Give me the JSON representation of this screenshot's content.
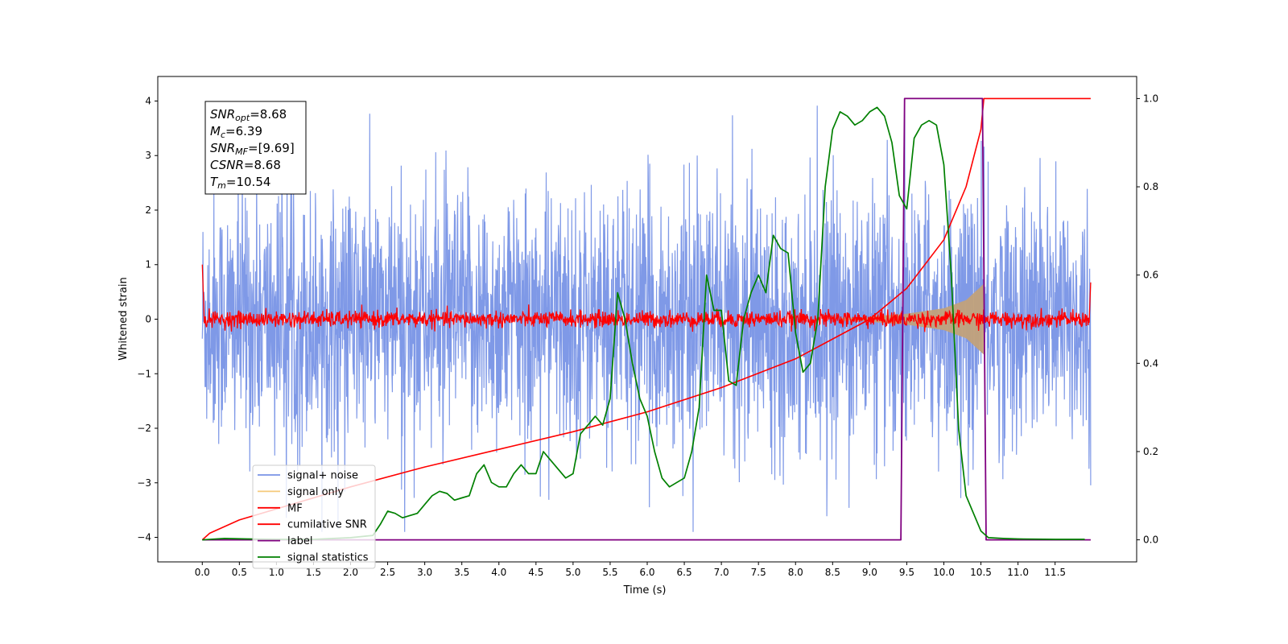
{
  "chart_data": {
    "type": "line",
    "xlabel": "Time (s)",
    "ylabel": "Whitened strain",
    "x_ticks": [
      "0.0",
      "0.5",
      "1.0",
      "1.5",
      "2.0",
      "2.5",
      "3.0",
      "3.5",
      "4.0",
      "4.5",
      "5.0",
      "5.5",
      "6.0",
      "6.5",
      "7.0",
      "7.5",
      "8.0",
      "8.5",
      "9.0",
      "9.5",
      "10.0",
      "10.5",
      "11.0",
      "11.5"
    ],
    "xlim": [
      -0.6,
      12.6
    ],
    "ylim_left": [
      -4.45,
      4.45
    ],
    "ylim_right": [
      -0.05,
      1.05
    ],
    "y_ticks_left": [
      "−4",
      "−3",
      "−2",
      "−1",
      "0",
      "1",
      "2",
      "3",
      "4"
    ],
    "y_ticks_right": [
      "0.0",
      "0.2",
      "0.4",
      "0.6",
      "0.8",
      "1.0"
    ],
    "legend_location": "lower-left",
    "annotation": [
      {
        "sym": "SNR",
        "sub": "opt",
        "value": "=8.68"
      },
      {
        "sym": "M",
        "sub": "c",
        "value": "=6.39"
      },
      {
        "sym": "SNR",
        "sub": "MF",
        "value": "=[9.69]"
      },
      {
        "sym": "CSNR",
        "sub": "",
        "value": "=8.68"
      },
      {
        "sym": "T",
        "sub": "m",
        "value": "=10.54"
      }
    ],
    "series": [
      {
        "name": "signal+ noise",
        "axis": "left",
        "color": "#7893e6",
        "x_range": [
          0,
          11.98
        ],
        "amplitude_envelope": [
          -3.9,
          3.95
        ],
        "description_values": {
          "typical_peak": 2.5
        }
      },
      {
        "name": "signal only",
        "axis": "left",
        "color": "#f5c97a",
        "chirp_envelope": {
          "t": [
            9.0,
            9.5,
            10.0,
            10.3,
            10.54
          ],
          "amp": [
            0.05,
            0.1,
            0.2,
            0.35,
            0.65
          ]
        }
      },
      {
        "name": "MF",
        "axis": "left",
        "color": "#ff0000",
        "start_value": 1.0,
        "noise_amplitude": 0.15,
        "end_value": 0.9
      },
      {
        "name": "cumilative SNR",
        "axis": "right",
        "color": "#ff0000",
        "x": [
          0,
          0.1,
          0.5,
          1.0,
          2.0,
          3.0,
          4.0,
          5.0,
          6.0,
          7.0,
          8.0,
          9.0,
          9.5,
          10.0,
          10.3,
          10.5,
          10.54,
          11.98
        ],
        "y": [
          0.0,
          0.015,
          0.045,
          0.07,
          0.12,
          0.165,
          0.205,
          0.245,
          0.29,
          0.345,
          0.41,
          0.5,
          0.57,
          0.68,
          0.8,
          0.93,
          1.0,
          1.0
        ]
      },
      {
        "name": "label",
        "axis": "right",
        "color": "#800080",
        "x": [
          0,
          9.42,
          9.47,
          10.52,
          10.57,
          11.98
        ],
        "y": [
          0,
          0,
          1,
          1,
          0,
          0
        ]
      },
      {
        "name": "signal statistics",
        "axis": "right",
        "color": "#008000",
        "x": [
          0,
          0.3,
          0.6,
          1.0,
          1.5,
          2.0,
          2.3,
          2.4,
          2.5,
          2.6,
          2.7,
          2.8,
          2.9,
          3.0,
          3.1,
          3.2,
          3.3,
          3.4,
          3.5,
          3.6,
          3.7,
          3.8,
          3.9,
          4.0,
          4.1,
          4.2,
          4.3,
          4.4,
          4.5,
          4.6,
          4.7,
          4.8,
          4.9,
          5.0,
          5.1,
          5.2,
          5.3,
          5.4,
          5.5,
          5.6,
          5.7,
          5.8,
          5.9,
          6.0,
          6.1,
          6.2,
          6.3,
          6.4,
          6.5,
          6.6,
          6.7,
          6.8,
          6.9,
          7.0,
          7.1,
          7.2,
          7.3,
          7.4,
          7.5,
          7.6,
          7.7,
          7.8,
          7.9,
          8.0,
          8.1,
          8.2,
          8.3,
          8.4,
          8.5,
          8.6,
          8.7,
          8.8,
          8.9,
          9.0,
          9.1,
          9.2,
          9.3,
          9.4,
          9.5,
          9.6,
          9.7,
          9.8,
          9.9,
          10.0,
          10.1,
          10.2,
          10.3,
          10.4,
          10.5,
          10.6,
          10.8,
          11.0,
          11.5,
          11.9
        ],
        "y": [
          0.0,
          0.003,
          0.002,
          0.001,
          0.001,
          0.005,
          0.01,
          0.035,
          0.065,
          0.06,
          0.05,
          0.055,
          0.06,
          0.08,
          0.1,
          0.11,
          0.105,
          0.09,
          0.095,
          0.1,
          0.15,
          0.17,
          0.13,
          0.12,
          0.12,
          0.15,
          0.17,
          0.15,
          0.15,
          0.2,
          0.18,
          0.16,
          0.14,
          0.15,
          0.24,
          0.26,
          0.28,
          0.26,
          0.32,
          0.56,
          0.5,
          0.4,
          0.32,
          0.28,
          0.2,
          0.14,
          0.12,
          0.13,
          0.14,
          0.2,
          0.3,
          0.6,
          0.52,
          0.52,
          0.36,
          0.35,
          0.5,
          0.56,
          0.6,
          0.56,
          0.69,
          0.66,
          0.65,
          0.47,
          0.38,
          0.4,
          0.5,
          0.8,
          0.93,
          0.97,
          0.96,
          0.94,
          0.95,
          0.97,
          0.98,
          0.96,
          0.9,
          0.78,
          0.75,
          0.91,
          0.94,
          0.95,
          0.94,
          0.85,
          0.6,
          0.25,
          0.1,
          0.06,
          0.02,
          0.005,
          0.003,
          0.002,
          0.001,
          0.001
        ]
      }
    ]
  }
}
